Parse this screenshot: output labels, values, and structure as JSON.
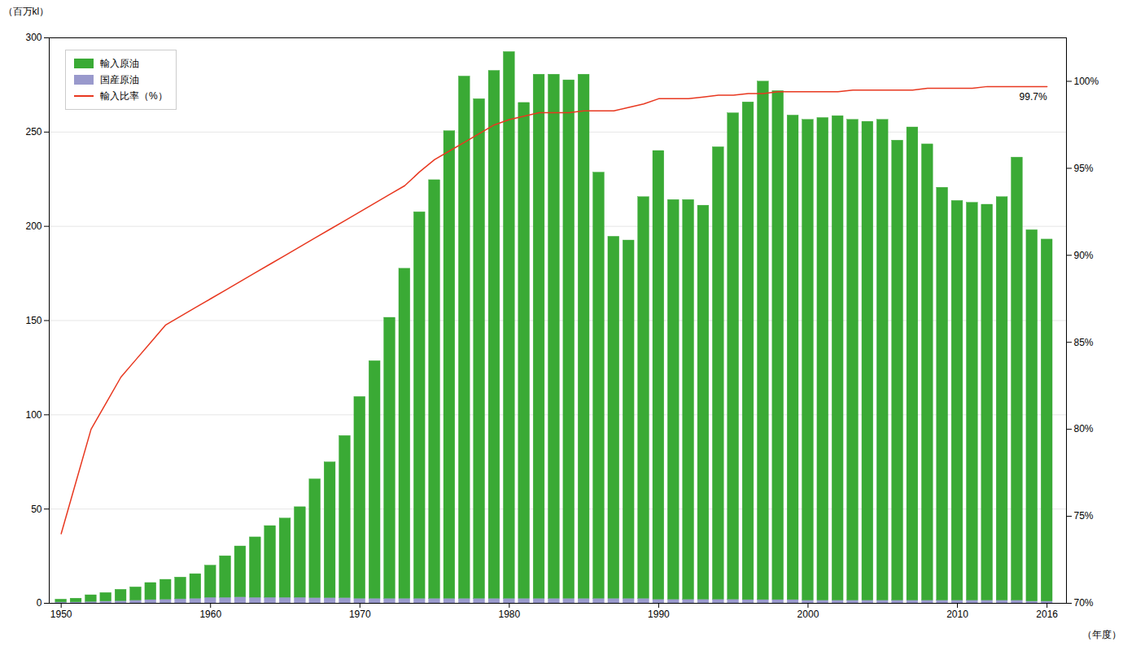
{
  "chart_data": {
    "type": "bar",
    "stacked": true,
    "x": [
      1950,
      1951,
      1952,
      1953,
      1954,
      1955,
      1956,
      1957,
      1958,
      1959,
      1960,
      1961,
      1962,
      1963,
      1964,
      1965,
      1966,
      1967,
      1968,
      1969,
      1970,
      1971,
      1972,
      1973,
      1974,
      1975,
      1976,
      1977,
      1978,
      1979,
      1980,
      1981,
      1982,
      1983,
      1984,
      1985,
      1986,
      1987,
      1988,
      1989,
      1990,
      1991,
      1992,
      1993,
      1994,
      1995,
      1996,
      1997,
      1998,
      1999,
      2000,
      2001,
      2002,
      2003,
      2004,
      2005,
      2006,
      2007,
      2008,
      2009,
      2010,
      2011,
      2012,
      2013,
      2014,
      2015,
      2016
    ],
    "xlim": [
      1949.2,
      2017.3
    ],
    "xticks": [
      1950,
      1960,
      1970,
      1980,
      1990,
      2000,
      2010,
      2016
    ],
    "xlabel": "（年度）",
    "ylabel": "（百万kl）",
    "ylim": [
      0,
      300
    ],
    "yticks": [
      0,
      50,
      100,
      150,
      200,
      250,
      300
    ],
    "y2lim": [
      70,
      102.5
    ],
    "y2ticks": [
      {
        "value": 70,
        "label": "70%"
      },
      {
        "value": 75,
        "label": "75%"
      },
      {
        "value": 80,
        "label": "80%"
      },
      {
        "value": 85,
        "label": "85%"
      },
      {
        "value": 90,
        "label": "90%"
      },
      {
        "value": 95,
        "label": "95%"
      },
      {
        "value": 100,
        "label": "100%"
      }
    ],
    "grid": true,
    "legend": "upper left",
    "annotation": "99.7%",
    "series": [
      {
        "name": "国産原油",
        "type": "bar",
        "color": "#9999cc",
        "values": [
          0.5,
          0.5,
          0.8,
          1.0,
          1.2,
          1.5,
          1.8,
          2.0,
          2.2,
          2.5,
          3.0,
          3.0,
          3.2,
          3.0,
          3.0,
          3.0,
          3.0,
          2.8,
          2.8,
          2.8,
          2.5,
          2.5,
          2.5,
          2.5,
          2.5,
          2.5,
          2.5,
          2.5,
          2.5,
          2.5,
          2.5,
          2.5,
          2.5,
          2.5,
          2.5,
          2.5,
          2.5,
          2.5,
          2.5,
          2.5,
          2.0,
          2.0,
          2.0,
          2.0,
          2.0,
          2.0,
          1.8,
          1.8,
          1.8,
          1.8,
          1.5,
          1.5,
          1.5,
          1.5,
          1.5,
          1.5,
          1.5,
          1.5,
          1.5,
          1.5,
          1.5,
          1.5,
          1.5,
          1.5,
          1.5,
          1.0,
          1.0
        ]
      },
      {
        "name": "輸入原油",
        "type": "bar",
        "color": "#3aaa35",
        "values": [
          1.5,
          2.0,
          3.5,
          4.5,
          6.0,
          7.0,
          9.0,
          10.5,
          11.5,
          13.0,
          17.0,
          22.0,
          27.0,
          32.0,
          38.0,
          42.0,
          48.0,
          63.0,
          72.0,
          86.0,
          107.0,
          126.0,
          149.0,
          175.0,
          205.0,
          222.0,
          248.0,
          277.0,
          265.0,
          280.0,
          290.0,
          263.0,
          278.0,
          278.0,
          275.0,
          278.0,
          226.0,
          192.0,
          190.0,
          213.0,
          238.0,
          212.0,
          212.0,
          209.0,
          240.0,
          258.0,
          264.0,
          275.0,
          270.0,
          257.0,
          255.0,
          256.0,
          257.0,
          255.0,
          254.0,
          255.0,
          244.0,
          251.0,
          242.0,
          219.0,
          212.0,
          211.0,
          210.0,
          214.0,
          235.0,
          197.0,
          192.0
        ]
      },
      {
        "name": "輸入比率（%）",
        "type": "line",
        "axis": "y2",
        "color": "#e83820",
        "values": [
          74.0,
          77.0,
          80.0,
          81.5,
          83.0,
          84.0,
          85.0,
          86.0,
          86.5,
          87.0,
          87.5,
          88.0,
          88.5,
          89.0,
          89.5,
          90.0,
          90.5,
          91.0,
          91.5,
          92.0,
          92.5,
          93.0,
          93.5,
          94.0,
          94.8,
          95.5,
          96.0,
          96.5,
          97.0,
          97.5,
          97.8,
          98.0,
          98.2,
          98.2,
          98.2,
          98.3,
          98.3,
          98.3,
          98.5,
          98.7,
          99.0,
          99.0,
          99.0,
          99.1,
          99.2,
          99.2,
          99.3,
          99.3,
          99.4,
          99.4,
          99.4,
          99.4,
          99.4,
          99.5,
          99.5,
          99.5,
          99.5,
          99.5,
          99.6,
          99.6,
          99.6,
          99.6,
          99.7,
          99.7,
          99.7,
          99.7,
          99.7
        ]
      }
    ]
  }
}
